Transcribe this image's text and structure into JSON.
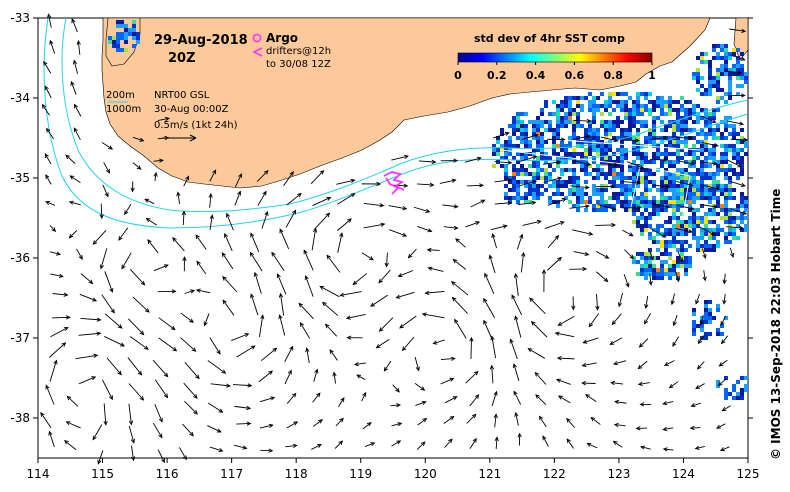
{
  "header": {
    "date": "29-Aug-2018",
    "time": "20Z",
    "argo_label": "Argo",
    "drifters_line1": "drifters@12h",
    "drifters_line2": "to 30/08 12Z"
  },
  "contours_legend": {
    "iso200": "200m",
    "iso1000": "1000m",
    "product": "NRT00 GSL",
    "valid": "30-Aug 00:00Z",
    "scale": "0.5m/s (1kt 24h)"
  },
  "colorbar": {
    "title": "std dev of 4hr SST comp",
    "ticks": [
      "0",
      "0.2",
      "0.4",
      "0.6",
      "0.8",
      "1"
    ]
  },
  "axes": {
    "x_ticks": [
      "114",
      "115",
      "116",
      "117",
      "118",
      "119",
      "120",
      "121",
      "122",
      "123",
      "124",
      "125"
    ],
    "y_ticks": [
      "-33",
      "-34",
      "-35",
      "-36",
      "-37",
      "-38"
    ],
    "xlim": [
      114,
      125
    ],
    "ylim": [
      -38.5,
      -33
    ]
  },
  "credit": "© IMOS 13-Sep-2018 22:03 Hobart Time",
  "colors": {
    "land": "#fcc99a",
    "contour": "#22d4e8",
    "drifter": "#ff33ff",
    "arrow": "#000000"
  }
}
